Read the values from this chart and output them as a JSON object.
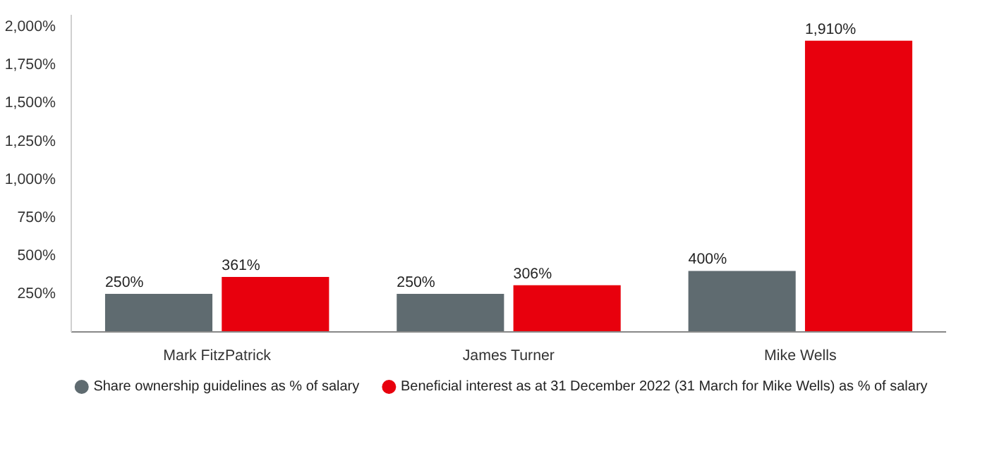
{
  "chart_data": {
    "type": "bar",
    "categories": [
      "Mark FitzPatrick",
      "James Turner",
      "Mike Wells"
    ],
    "series": [
      {
        "name": "Share ownership guidelines as % of salary",
        "color": "#5f6b70",
        "values": [
          250,
          250,
          400
        ],
        "value_labels": [
          "250%",
          "250%",
          "400%"
        ]
      },
      {
        "name": "Beneficial interest as at 31 December 2022 (31 March for Mike Wells) as % of salary",
        "color": "#e8000d",
        "values": [
          361,
          306,
          1910
        ],
        "value_labels": [
          "361%",
          "306%",
          "1,910%"
        ]
      }
    ],
    "ylim": [
      0,
      2080
    ],
    "yticks": [
      {
        "value": 250,
        "label": "250%"
      },
      {
        "value": 500,
        "label": "500%"
      },
      {
        "value": 750,
        "label": "750%"
      },
      {
        "value": 1000,
        "label": "1,000%"
      },
      {
        "value": 1250,
        "label": "1,250%"
      },
      {
        "value": 1500,
        "label": "1,500%"
      },
      {
        "value": 1750,
        "label": "1,750%"
      },
      {
        "value": 2000,
        "label": "2,000%"
      }
    ],
    "grid": false,
    "legend": "bottom",
    "marker": "circle"
  }
}
